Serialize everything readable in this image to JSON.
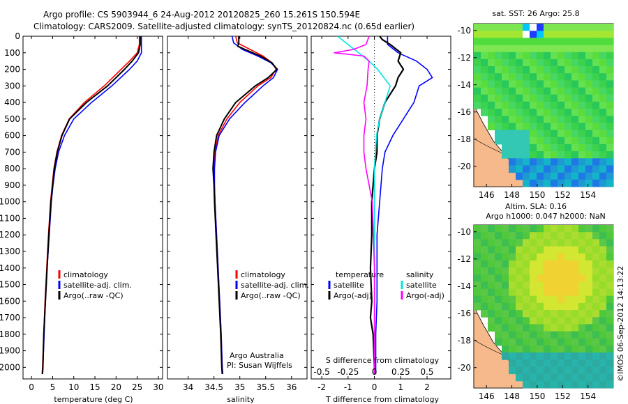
{
  "header": {
    "line1": "Argo profile: CS 5903944_6 24-Aug-2012 20120825_260 15.261S 150.594E",
    "line2": "Climatology: CARS2009. Satellite-adjusted climatology: synTS_20120824.nc (0.65d earlier)"
  },
  "colors": {
    "climatology": "#ff0000",
    "satellite": "#0000ff",
    "argo": "#000000",
    "sat_diff": "#00e5e5",
    "argo_diff": "#ff00ff",
    "land": "#f5b98c"
  },
  "chart_data": [
    {
      "type": "line",
      "id": "temperature",
      "xlabel": "temperature (deg C)",
      "xlim": [
        -2,
        31
      ],
      "xticks": [
        0,
        5,
        10,
        15,
        20,
        25,
        30
      ],
      "ylim": [
        2070,
        0
      ],
      "yticks": [
        0,
        100,
        200,
        300,
        400,
        500,
        600,
        700,
        800,
        900,
        1000,
        1100,
        1200,
        1300,
        1400,
        1500,
        1600,
        1700,
        1800,
        1900,
        2000
      ],
      "legend": [
        "climatology",
        "satellite-adj. clim.",
        "Argo(..raw -QC)"
      ],
      "series": [
        {
          "name": "climatology",
          "depth": [
            0,
            50,
            100,
            150,
            200,
            300,
            400,
            500,
            600,
            700,
            800,
            900,
            1000,
            1200,
            1400,
            1600,
            1800,
            2000,
            2040
          ],
          "values": [
            25.5,
            25.5,
            25.0,
            23.2,
            21.2,
            17.2,
            12.5,
            8.9,
            7.1,
            6.0,
            5.3,
            4.9,
            4.5,
            4.0,
            3.6,
            3.2,
            2.9,
            2.6,
            2.5
          ]
        },
        {
          "name": "satellite-adj. clim.",
          "depth": [
            0,
            50,
            100,
            150,
            200,
            300,
            400,
            500,
            600,
            700,
            800,
            900,
            1000,
            1200,
            1400,
            1600,
            1800,
            2000,
            2040
          ],
          "values": [
            26.0,
            26.0,
            26.0,
            25.0,
            23.2,
            19.0,
            14.2,
            10.0,
            7.8,
            6.4,
            5.6,
            5.1,
            4.7,
            4.2,
            3.7,
            3.3,
            3.0,
            2.7,
            2.6
          ]
        },
        {
          "name": "Argo(..raw -QC)",
          "depth": [
            0,
            50,
            100,
            150,
            200,
            300,
            400,
            500,
            600,
            700,
            800,
            900,
            1000,
            1200,
            1400,
            1600,
            1800,
            2000,
            2040
          ],
          "values": [
            25.7,
            25.7,
            25.3,
            23.8,
            22.0,
            18.0,
            13.0,
            9.0,
            7.2,
            6.1,
            5.4,
            5.0,
            4.6,
            4.1,
            3.7,
            3.3,
            2.9,
            2.7,
            2.6
          ]
        }
      ]
    },
    {
      "type": "line",
      "id": "salinity",
      "xlabel": "salinity",
      "xlim": [
        33.6,
        36.3
      ],
      "xticks": [
        34,
        34.5,
        35,
        35.5,
        36
      ],
      "ylim": [
        2070,
        0
      ],
      "legend": [
        "climatology",
        "satellite-adj. clim.",
        "Argo(..raw -QC)"
      ],
      "annotation": [
        "Argo Australia",
        "PI: Susan Wijffels"
      ],
      "series": [
        {
          "name": "climatology",
          "depth": [
            0,
            40,
            80,
            120,
            160,
            200,
            250,
            300,
            400,
            500,
            600,
            700,
            800,
            900,
            1000,
            1200,
            1400,
            1600,
            1800,
            2000,
            2040
          ],
          "values": [
            34.92,
            34.95,
            35.2,
            35.45,
            35.62,
            35.7,
            35.6,
            35.35,
            35.0,
            34.75,
            34.58,
            34.52,
            34.5,
            34.51,
            34.52,
            34.55,
            34.58,
            34.61,
            34.64,
            34.66,
            34.67
          ]
        },
        {
          "name": "satellite-adj. clim.",
          "depth": [
            0,
            40,
            80,
            120,
            160,
            200,
            250,
            300,
            400,
            500,
            600,
            700,
            800,
            900,
            1000,
            1200,
            1400,
            1600,
            1800,
            2000,
            2040
          ],
          "values": [
            34.85,
            34.88,
            35.05,
            35.35,
            35.6,
            35.73,
            35.65,
            35.45,
            35.1,
            34.8,
            34.6,
            34.53,
            34.51,
            34.51,
            34.52,
            34.55,
            34.58,
            34.61,
            34.64,
            34.66,
            34.67
          ]
        },
        {
          "name": "Argo(..raw -QC)",
          "depth": [
            0,
            40,
            60,
            80,
            120,
            160,
            200,
            250,
            300,
            400,
            500,
            600,
            700,
            800,
            900,
            1000,
            1200,
            1400,
            1600,
            1800,
            2000,
            2040
          ],
          "values": [
            34.98,
            34.98,
            34.96,
            35.1,
            35.4,
            35.62,
            35.72,
            35.55,
            35.3,
            34.92,
            34.7,
            34.55,
            34.5,
            34.48,
            34.5,
            34.51,
            34.54,
            34.57,
            34.6,
            34.63,
            34.65,
            34.66
          ]
        }
      ]
    },
    {
      "type": "line",
      "id": "difference",
      "xlabel": "T difference from climatology",
      "xlim": [
        -2.4,
        2.9
      ],
      "xticks": [
        -2,
        -1,
        0,
        1,
        2
      ],
      "top_axis_label": "S difference from climatology",
      "top_ticks": [
        "-0.5",
        "-0.25",
        "0",
        "0.25",
        "0.5"
      ],
      "ylim": [
        2070,
        0
      ],
      "legend": {
        "temperature_title": "temperature",
        "salinity_title": "salinity",
        "items": [
          "satellite",
          "Argo(-adj)",
          "satellite",
          "Argo(-adj)"
        ]
      },
      "series": [
        {
          "name": "T satellite",
          "depth": [
            0,
            50,
            100,
            150,
            200,
            250,
            300,
            400,
            500,
            600,
            700,
            800,
            1000,
            1200,
            1400,
            1600,
            1800,
            2000,
            2040
          ],
          "values": [
            0.5,
            0.5,
            0.9,
            1.6,
            2.0,
            2.2,
            1.7,
            1.5,
            1.1,
            0.7,
            0.4,
            0.3,
            0.2,
            0.1,
            0.1,
            0.1,
            0.05,
            0.05,
            0.05
          ]
        },
        {
          "name": "T Argo(-adj)",
          "depth": [
            0,
            20,
            50,
            100,
            150,
            200,
            250,
            300,
            350,
            400,
            500,
            600,
            700,
            800,
            900,
            1000,
            1200,
            1400,
            1600,
            1700,
            1800,
            2000,
            2040
          ],
          "values": [
            0.2,
            0.3,
            0.6,
            1.0,
            0.9,
            1.1,
            0.9,
            0.8,
            0.6,
            0.4,
            0.2,
            0.1,
            0.1,
            0.0,
            -0.05,
            -0.1,
            -0.1,
            -0.15,
            -0.1,
            -0.15,
            -0.05,
            0.0,
            0.0
          ]
        },
        {
          "name": "S satellite",
          "depth": [
            0,
            50,
            100,
            150,
            200,
            300,
            400,
            500,
            600,
            700,
            800,
            1000,
            1200,
            1400,
            1600,
            1800,
            2000,
            2040
          ],
          "values": [
            -0.35,
            -0.25,
            -0.15,
            -0.05,
            0.03,
            0.15,
            0.1,
            0.05,
            0.02,
            0.01,
            0.0,
            0.0,
            0.0,
            0.0,
            0.0,
            0.0,
            0.0,
            0.0
          ]
        },
        {
          "name": "S Argo(-adj)",
          "depth": [
            0,
            50,
            80,
            100,
            120,
            150,
            200,
            300,
            400,
            500,
            600,
            700,
            800,
            900,
            1000,
            1200,
            1400,
            1600,
            1800,
            2000,
            2040
          ],
          "values": [
            -0.05,
            -0.08,
            -0.2,
            -0.38,
            -0.1,
            -0.05,
            -0.06,
            -0.07,
            -0.1,
            -0.08,
            -0.1,
            -0.1,
            -0.08,
            -0.05,
            -0.02,
            -0.01,
            0.0,
            0.0,
            0.0,
            0.0,
            0.0
          ]
        }
      ]
    },
    {
      "type": "heatmap",
      "id": "sst_map",
      "title": "sat. SST: 26 Argo: 25.8",
      "xlim": [
        145,
        156
      ],
      "ylim": [
        -21.5,
        -9.5
      ],
      "xticks": [
        146,
        148,
        150,
        152,
        154
      ],
      "yticks": [
        -10,
        -12,
        -14,
        -16,
        -18,
        -20
      ],
      "float_position": {
        "lon": 150.594,
        "lat": -15.261
      }
    },
    {
      "type": "heatmap",
      "id": "sla_map",
      "title": "Altim. SLA: 0.16",
      "subtitle": "Argo h1000: 0.047 h2000: NaN",
      "xlim": [
        145,
        156
      ],
      "ylim": [
        -21.5,
        -9.5
      ],
      "xticks": [
        146,
        148,
        150,
        152,
        154
      ],
      "yticks": [
        -10,
        -12,
        -14,
        -16,
        -18,
        -20
      ],
      "float_position": {
        "lon": 150.594,
        "lat": -15.261
      }
    }
  ],
  "footer": {
    "credit": "©IMOS 06-Sep-2012 14:13:22"
  }
}
